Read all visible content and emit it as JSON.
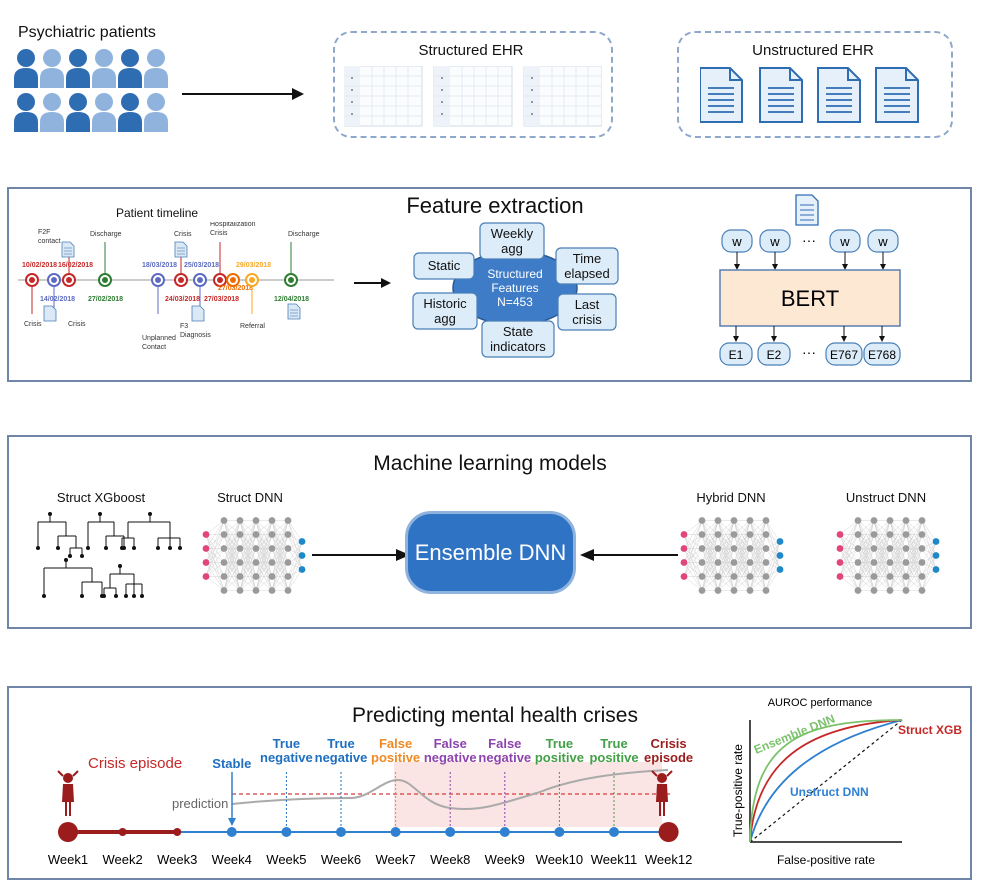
{
  "top": {
    "patients_label": "Psychiatric patients",
    "structured_label": "Structured EHR",
    "unstructured_label": "Unstructured EHR"
  },
  "feature_extraction": {
    "title": "Feature extraction",
    "timeline_title": "Patient timeline",
    "timeline_events": [
      {
        "date": "10/02/2018",
        "label": "Crisis",
        "color": "#c62828"
      },
      {
        "date": "14/02/2018",
        "label": "Crisis",
        "color": "#5c6bc0"
      },
      {
        "date": "16/02/2018",
        "label": "F2F contact",
        "color": "#c62828"
      },
      {
        "date": "27/02/2018",
        "label": "Discharge",
        "color": "#2e7d32"
      },
      {
        "date": "18/03/2018",
        "label": "Unplanned Contact",
        "color": "#5c6bc0"
      },
      {
        "date": "24/03/2018",
        "label": "Crisis",
        "color": "#c62828"
      },
      {
        "date": "25/03/2018",
        "label": "F3 Diagnosis",
        "color": "#5c6bc0"
      },
      {
        "date": "27/03/2018",
        "label": "Hospitalization Crisis",
        "color": "#c62828"
      },
      {
        "date": "27/03/2018",
        "label": "",
        "color": "#ef6c00"
      },
      {
        "date": "29/03/2018",
        "label": "Referral",
        "color": "#f9a825"
      },
      {
        "date": "12/04/2018",
        "label": "Discharge",
        "color": "#2e7d32"
      }
    ],
    "hub_label": "Structured Features N=453",
    "hub_line1": "Structured",
    "hub_line2": "Features",
    "hub_line3": "N=453",
    "features": {
      "static": "Static",
      "weekly_1": "Weekly",
      "weekly_2": "agg",
      "time_1": "Time",
      "time_2": "elapsed",
      "historic_1": "Historic",
      "historic_2": "agg",
      "state_1": "State",
      "state_2": "indicators",
      "last_1": "Last",
      "last_2": "crisis"
    },
    "bert_label": "BERT",
    "tokens": [
      "w",
      "w",
      "w",
      "w"
    ],
    "embeddings": [
      "E1",
      "E2",
      "E767",
      "E768"
    ],
    "ellipsis": "···"
  },
  "models": {
    "title": "Machine learning models",
    "struct_xgboost": "Struct XGboost",
    "struct_dnn": "Struct DNN",
    "hybrid_dnn": "Hybrid DNN",
    "unstruct_dnn": "Unstruct DNN",
    "ensemble": "Ensemble DNN"
  },
  "prediction": {
    "title": "Predicting mental health crises",
    "crisis_episode_label": "Crisis episode",
    "prediction_label": "prediction",
    "weeks": [
      "Week1",
      "Week2",
      "Week3",
      "Week4",
      "Week5",
      "Week6",
      "Week7",
      "Week8",
      "Week9",
      "Week10",
      "Week11",
      "Week12"
    ],
    "outcomes": [
      {
        "line1": "Stable",
        "line2": "",
        "color": "#1e6fc0"
      },
      {
        "line1": "True",
        "line2": "negative",
        "color": "#1e6fc0"
      },
      {
        "line1": "True",
        "line2": "negative",
        "color": "#1e6fc0"
      },
      {
        "line1": "False",
        "line2": "positive",
        "color": "#f08a24"
      },
      {
        "line1": "False",
        "line2": "negative",
        "color": "#8e44ad"
      },
      {
        "line1": "False",
        "line2": "negative",
        "color": "#8e44ad"
      },
      {
        "line1": "True",
        "line2": "positive",
        "color": "#43a047"
      },
      {
        "line1": "True",
        "line2": "positive",
        "color": "#43a047"
      },
      {
        "line1": "Crisis",
        "line2": "episode",
        "color": "#9b1c1c"
      }
    ]
  },
  "auroc": {
    "title": "AUROC performance",
    "xlabel": "False-positive rate",
    "ylabel": "True-positive rate",
    "ensemble": "Ensemble DNN",
    "struct_xgb": "Struct XGB",
    "unstruct_dnn": "Unstruct DNN"
  },
  "colors": {
    "person": "#2f6db3",
    "person_light": "#8fb3dc",
    "panel_border": "#6f86a8",
    "feature_box": "#dcecf8",
    "hub": "#3e7cc8",
    "bert_fill": "#fde8d4",
    "ensemble_fill": "#2f73c4",
    "crisis_red": "#9b1c1c"
  },
  "icons": [
    "person-icon",
    "document-icon",
    "table-icon",
    "tree-icon",
    "neural-network-icon",
    "crisis-figure-icon"
  ]
}
